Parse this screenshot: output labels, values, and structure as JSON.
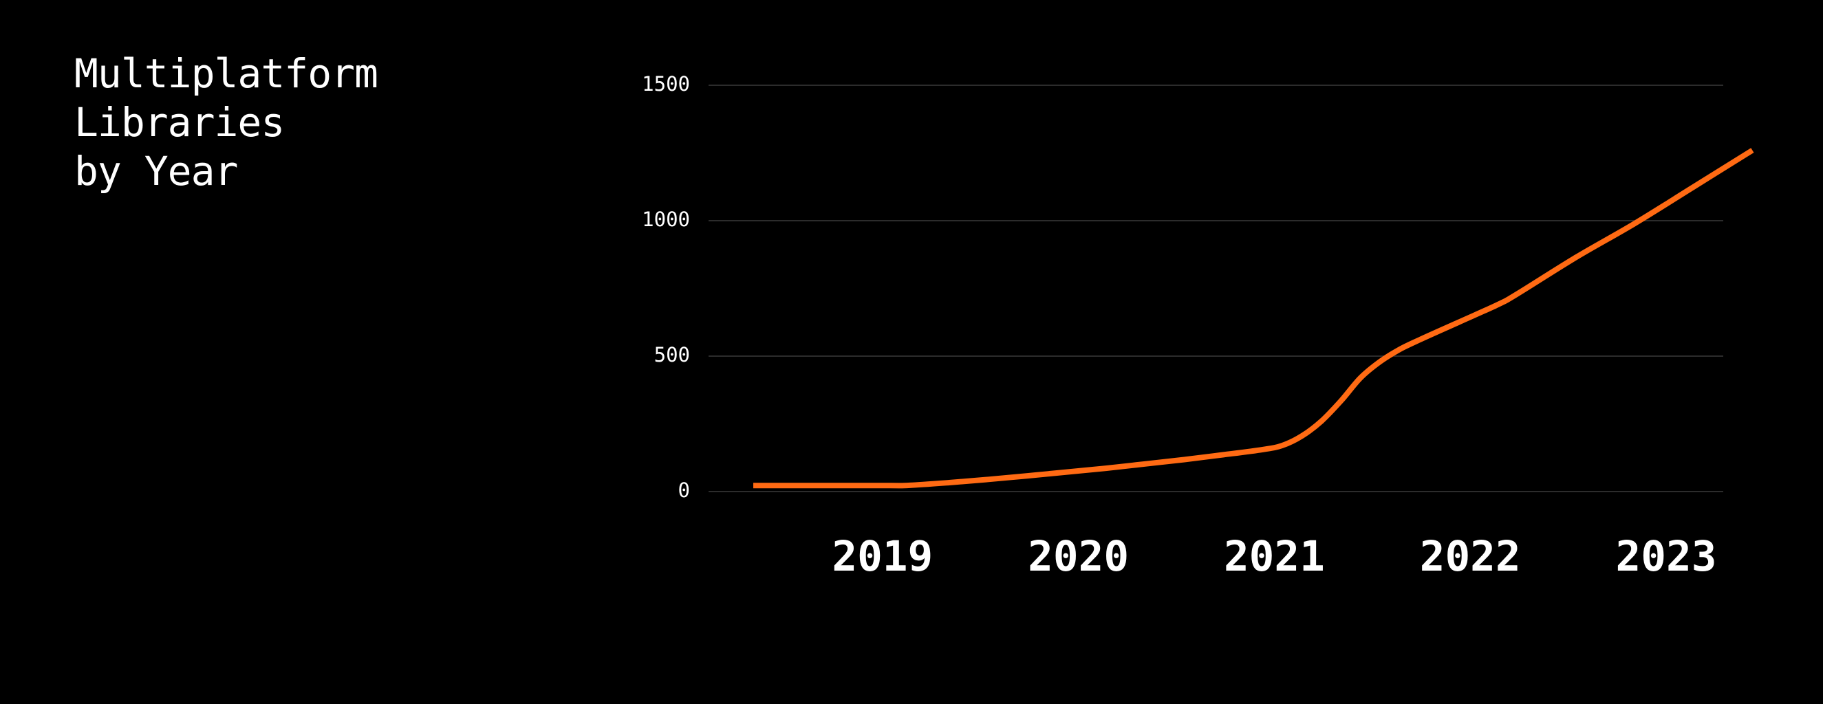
{
  "title_lines": [
    "Multiplatform",
    "Libraries",
    "by Year"
  ],
  "colors": {
    "background": "#000000",
    "line": "#ff6a13",
    "grid": "#3a3a3a",
    "text": "#ffffff"
  },
  "chart_data": {
    "type": "line",
    "title": "Multiplatform Libraries by Year",
    "xlabel": "",
    "ylabel": "",
    "ylim": [
      0,
      1500
    ],
    "xlim": [
      2018.2,
      2023.3
    ],
    "y_ticks": [
      0,
      500,
      1000,
      1500
    ],
    "x_ticks": [
      2019,
      2020,
      2021,
      2022,
      2023
    ],
    "grid": true,
    "legend": "none",
    "series": [
      {
        "x": [
          2018.2,
          2018.6,
          2018.9,
          2019.0,
          2019.2,
          2019.4,
          2019.6,
          2019.8,
          2020.0,
          2020.2,
          2020.4,
          2020.6,
          2020.8,
          2020.9,
          2021.0,
          2021.1,
          2021.2,
          2021.3,
          2021.4,
          2021.5,
          2021.6,
          2021.8,
          2022.0,
          2022.1,
          2022.4,
          2022.7,
          2023.0,
          2023.3
        ],
        "y": [
          22,
          22,
          22,
          23,
          33,
          45,
          58,
          72,
          86,
          102,
          118,
          136,
          155,
          170,
          205,
          260,
          335,
          420,
          480,
          525,
          560,
          625,
          690,
          730,
          865,
          990,
          1125,
          1260
        ]
      }
    ]
  }
}
